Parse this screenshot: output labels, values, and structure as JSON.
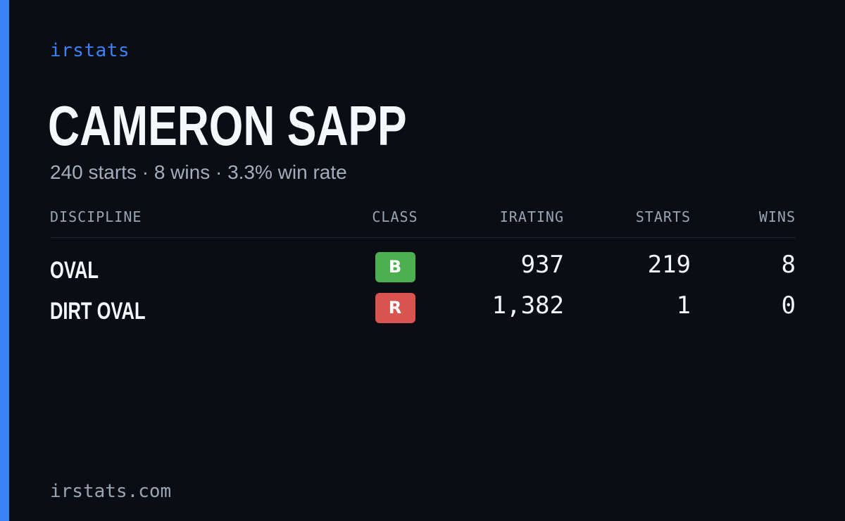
{
  "brand": {
    "name": "irstats",
    "footer_domain": "irstats.com"
  },
  "driver": {
    "name": "CAMERON SAPP",
    "summary": "240 starts · 8 wins · 3.3% win rate"
  },
  "table": {
    "headers": {
      "discipline": "DISCIPLINE",
      "class": "CLASS",
      "irating": "IRATING",
      "starts": "STARTS",
      "wins": "WINS"
    },
    "rows": [
      {
        "discipline": "OVAL",
        "class": "B",
        "class_color": "#4caf50",
        "irating": "937",
        "starts": "219",
        "wins": "8"
      },
      {
        "discipline": "DIRT OVAL",
        "class": "R",
        "class_color": "#d9534f",
        "irating": "1,382",
        "starts": "1",
        "wins": "0"
      }
    ]
  },
  "colors": {
    "background": "#0a0d14",
    "accent": "#3b82f6",
    "text_primary": "#f5f7fa",
    "text_muted": "#9aa5b4"
  }
}
